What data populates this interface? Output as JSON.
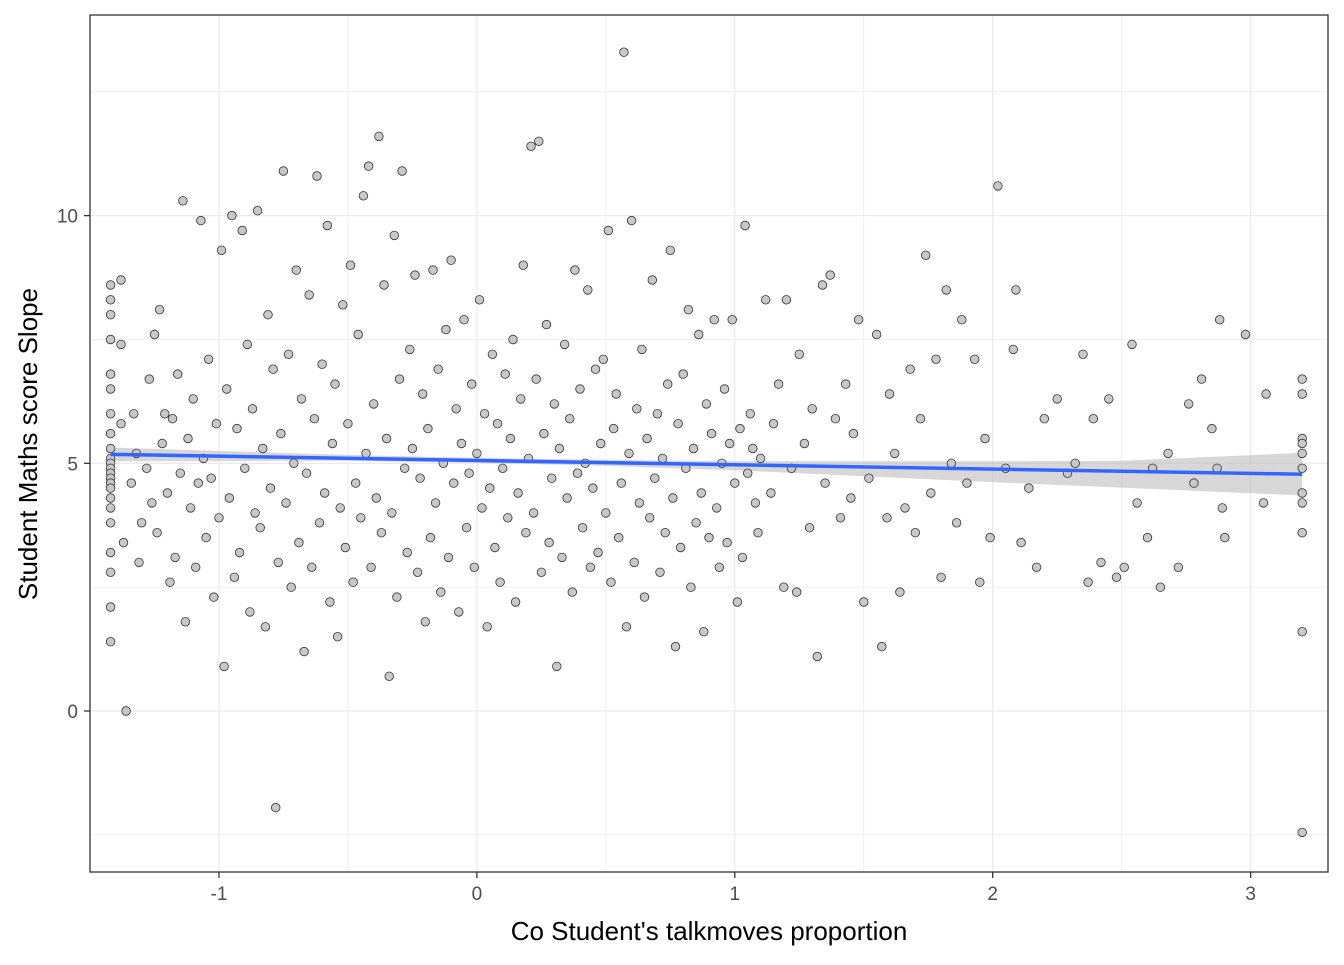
{
  "chart_data": {
    "type": "scatter",
    "title": "",
    "xlabel": "Co Student's talkmoves proportion",
    "ylabel": "Student Maths score Slope",
    "xlim": [
      -1.5,
      3.3
    ],
    "ylim": [
      -3.25,
      14.05
    ],
    "x_ticks": [
      -1,
      0,
      1,
      2,
      3
    ],
    "y_ticks": [
      0,
      5,
      10
    ],
    "x_tick_labels": [
      "-1",
      "0",
      "1",
      "2",
      "3"
    ],
    "y_tick_labels": [
      "0",
      "5",
      "10"
    ],
    "grid": true,
    "legend": "none",
    "colors": {
      "point_fill": "#c8c8c8",
      "point_stroke": "#333333",
      "trend_line": "#3366ff",
      "confidence_band": "#bdbdbd",
      "grid": "#ebebeb",
      "panel_border": "#333333"
    },
    "trend": {
      "method": "linear",
      "x": [
        -1.42,
        3.2
      ],
      "y": [
        5.18,
        4.78
      ],
      "se_band": [
        {
          "x": -1.42,
          "lo": 5.04,
          "hi": 5.32
        },
        {
          "x": -0.5,
          "lo": 5.05,
          "hi": 5.17
        },
        {
          "x": 0.0,
          "lo": 5.01,
          "hi": 5.11
        },
        {
          "x": 0.5,
          "lo": 4.95,
          "hi": 5.07
        },
        {
          "x": 1.0,
          "lo": 4.86,
          "hi": 5.04
        },
        {
          "x": 1.5,
          "lo": 4.74,
          "hi": 5.04
        },
        {
          "x": 2.0,
          "lo": 4.62,
          "hi": 5.04
        },
        {
          "x": 2.5,
          "lo": 4.51,
          "hi": 5.05
        },
        {
          "x": 3.2,
          "lo": 4.35,
          "hi": 5.21
        }
      ]
    },
    "points": [
      [
        -1.42,
        8.6
      ],
      [
        -1.42,
        8.3
      ],
      [
        -1.42,
        8.0
      ],
      [
        -1.42,
        7.5
      ],
      [
        -1.42,
        6.8
      ],
      [
        -1.42,
        6.5
      ],
      [
        -1.42,
        6.0
      ],
      [
        -1.42,
        5.6
      ],
      [
        -1.42,
        5.3
      ],
      [
        -1.42,
        5.1
      ],
      [
        -1.42,
        5.0
      ],
      [
        -1.42,
        4.9
      ],
      [
        -1.42,
        4.8
      ],
      [
        -1.42,
        4.7
      ],
      [
        -1.42,
        4.6
      ],
      [
        -1.42,
        4.5
      ],
      [
        -1.42,
        4.3
      ],
      [
        -1.42,
        4.1
      ],
      [
        -1.42,
        3.8
      ],
      [
        -1.42,
        3.2
      ],
      [
        -1.42,
        2.8
      ],
      [
        -1.42,
        2.1
      ],
      [
        -1.42,
        1.4
      ],
      [
        -1.38,
        8.7
      ],
      [
        -1.38,
        7.4
      ],
      [
        -1.38,
        5.8
      ],
      [
        -1.37,
        3.4
      ],
      [
        -1.36,
        0.0
      ],
      [
        -1.34,
        4.6
      ],
      [
        -1.33,
        6.0
      ],
      [
        -1.32,
        5.2
      ],
      [
        -1.31,
        3.0
      ],
      [
        -1.3,
        3.8
      ],
      [
        -1.28,
        4.9
      ],
      [
        -1.27,
        6.7
      ],
      [
        -1.26,
        4.2
      ],
      [
        -1.25,
        7.6
      ],
      [
        -1.24,
        3.6
      ],
      [
        -1.23,
        8.1
      ],
      [
        -1.22,
        5.4
      ],
      [
        -1.21,
        6.0
      ],
      [
        -1.2,
        4.4
      ],
      [
        -1.19,
        2.6
      ],
      [
        -1.18,
        5.9
      ],
      [
        -1.17,
        3.1
      ],
      [
        -1.16,
        6.8
      ],
      [
        -1.15,
        4.8
      ],
      [
        -1.14,
        10.3
      ],
      [
        -1.13,
        1.8
      ],
      [
        -1.12,
        5.5
      ],
      [
        -1.11,
        4.1
      ],
      [
        -1.1,
        6.3
      ],
      [
        -1.09,
        2.9
      ],
      [
        -1.08,
        4.6
      ],
      [
        -1.07,
        9.9
      ],
      [
        -1.06,
        5.1
      ],
      [
        -1.05,
        3.5
      ],
      [
        -1.04,
        7.1
      ],
      [
        -1.03,
        4.7
      ],
      [
        -1.02,
        2.3
      ],
      [
        -1.01,
        5.8
      ],
      [
        -1.0,
        3.9
      ],
      [
        -0.99,
        9.3
      ],
      [
        -0.98,
        0.9
      ],
      [
        -0.97,
        6.5
      ],
      [
        -0.96,
        4.3
      ],
      [
        -0.95,
        10.0
      ],
      [
        -0.94,
        2.7
      ],
      [
        -0.93,
        5.7
      ],
      [
        -0.92,
        3.2
      ],
      [
        -0.91,
        9.7
      ],
      [
        -0.9,
        4.9
      ],
      [
        -0.89,
        7.4
      ],
      [
        -0.88,
        2.0
      ],
      [
        -0.87,
        6.1
      ],
      [
        -0.86,
        4.0
      ],
      [
        -0.85,
        10.1
      ],
      [
        -0.84,
        3.7
      ],
      [
        -0.83,
        5.3
      ],
      [
        -0.82,
        1.7
      ],
      [
        -0.81,
        8.0
      ],
      [
        -0.8,
        4.5
      ],
      [
        -0.79,
        6.9
      ],
      [
        -0.78,
        -1.95
      ],
      [
        -0.77,
        3.0
      ],
      [
        -0.76,
        5.6
      ],
      [
        -0.75,
        10.9
      ],
      [
        -0.74,
        4.2
      ],
      [
        -0.73,
        7.2
      ],
      [
        -0.72,
        2.5
      ],
      [
        -0.71,
        5.0
      ],
      [
        -0.7,
        8.9
      ],
      [
        -0.69,
        3.4
      ],
      [
        -0.68,
        6.3
      ],
      [
        -0.67,
        1.2
      ],
      [
        -0.66,
        4.8
      ],
      [
        -0.65,
        8.4
      ],
      [
        -0.64,
        2.9
      ],
      [
        -0.63,
        5.9
      ],
      [
        -0.62,
        10.8
      ],
      [
        -0.61,
        3.8
      ],
      [
        -0.6,
        7.0
      ],
      [
        -0.59,
        4.4
      ],
      [
        -0.58,
        9.8
      ],
      [
        -0.57,
        2.2
      ],
      [
        -0.56,
        5.4
      ],
      [
        -0.55,
        6.6
      ],
      [
        -0.54,
        1.5
      ],
      [
        -0.53,
        4.1
      ],
      [
        -0.52,
        8.2
      ],
      [
        -0.51,
        3.3
      ],
      [
        -0.5,
        5.8
      ],
      [
        -0.49,
        9.0
      ],
      [
        -0.48,
        2.6
      ],
      [
        -0.47,
        4.6
      ],
      [
        -0.46,
        7.6
      ],
      [
        -0.45,
        3.9
      ],
      [
        -0.44,
        10.4
      ],
      [
        -0.43,
        5.2
      ],
      [
        -0.42,
        11.0
      ],
      [
        -0.41,
        2.9
      ],
      [
        -0.4,
        6.2
      ],
      [
        -0.39,
        4.3
      ],
      [
        -0.38,
        11.6
      ],
      [
        -0.37,
        3.6
      ],
      [
        -0.36,
        8.6
      ],
      [
        -0.35,
        5.5
      ],
      [
        -0.34,
        0.7
      ],
      [
        -0.33,
        4.0
      ],
      [
        -0.32,
        9.6
      ],
      [
        -0.31,
        2.3
      ],
      [
        -0.3,
        6.7
      ],
      [
        -0.29,
        10.9
      ],
      [
        -0.28,
        4.9
      ],
      [
        -0.27,
        3.2
      ],
      [
        -0.26,
        7.3
      ],
      [
        -0.25,
        5.3
      ],
      [
        -0.24,
        8.8
      ],
      [
        -0.23,
        2.8
      ],
      [
        -0.22,
        4.7
      ],
      [
        -0.21,
        6.4
      ],
      [
        -0.2,
        1.8
      ],
      [
        -0.19,
        5.7
      ],
      [
        -0.18,
        3.5
      ],
      [
        -0.17,
        8.9
      ],
      [
        -0.16,
        4.2
      ],
      [
        -0.15,
        6.9
      ],
      [
        -0.14,
        2.4
      ],
      [
        -0.13,
        5.0
      ],
      [
        -0.12,
        7.7
      ],
      [
        -0.11,
        3.1
      ],
      [
        -0.1,
        9.1
      ],
      [
        -0.09,
        4.6
      ],
      [
        -0.08,
        6.1
      ],
      [
        -0.07,
        2.0
      ],
      [
        -0.06,
        5.4
      ],
      [
        -0.05,
        7.9
      ],
      [
        -0.04,
        3.7
      ],
      [
        -0.03,
        4.8
      ],
      [
        -0.02,
        6.6
      ],
      [
        -0.01,
        2.9
      ],
      [
        0.0,
        5.2
      ],
      [
        0.01,
        8.3
      ],
      [
        0.02,
        4.1
      ],
      [
        0.03,
        6.0
      ],
      [
        0.04,
        1.7
      ],
      [
        0.05,
        4.5
      ],
      [
        0.06,
        7.2
      ],
      [
        0.07,
        3.3
      ],
      [
        0.08,
        5.8
      ],
      [
        0.09,
        2.6
      ],
      [
        0.1,
        4.9
      ],
      [
        0.11,
        6.8
      ],
      [
        0.12,
        3.9
      ],
      [
        0.13,
        5.5
      ],
      [
        0.14,
        7.5
      ],
      [
        0.15,
        2.2
      ],
      [
        0.16,
        4.4
      ],
      [
        0.17,
        6.3
      ],
      [
        0.18,
        9.0
      ],
      [
        0.19,
        3.6
      ],
      [
        0.2,
        5.1
      ],
      [
        0.21,
        11.4
      ],
      [
        0.22,
        4.0
      ],
      [
        0.23,
        6.7
      ],
      [
        0.24,
        11.5
      ],
      [
        0.25,
        2.8
      ],
      [
        0.26,
        5.6
      ],
      [
        0.27,
        7.8
      ],
      [
        0.28,
        3.4
      ],
      [
        0.29,
        4.7
      ],
      [
        0.3,
        6.2
      ],
      [
        0.31,
        0.9
      ],
      [
        0.32,
        5.3
      ],
      [
        0.33,
        3.1
      ],
      [
        0.34,
        7.4
      ],
      [
        0.35,
        4.3
      ],
      [
        0.36,
        5.9
      ],
      [
        0.37,
        2.4
      ],
      [
        0.38,
        8.9
      ],
      [
        0.39,
        4.8
      ],
      [
        0.4,
        6.5
      ],
      [
        0.41,
        3.7
      ],
      [
        0.42,
        5.0
      ],
      [
        0.43,
        8.5
      ],
      [
        0.44,
        2.9
      ],
      [
        0.45,
        4.5
      ],
      [
        0.46,
        6.9
      ],
      [
        0.47,
        3.2
      ],
      [
        0.48,
        5.4
      ],
      [
        0.49,
        7.1
      ],
      [
        0.5,
        4.0
      ],
      [
        0.51,
        9.7
      ],
      [
        0.52,
        2.6
      ],
      [
        0.53,
        5.7
      ],
      [
        0.54,
        6.4
      ],
      [
        0.55,
        3.5
      ],
      [
        0.56,
        4.6
      ],
      [
        0.57,
        13.3
      ],
      [
        0.58,
        1.7
      ],
      [
        0.59,
        5.2
      ],
      [
        0.6,
        9.9
      ],
      [
        0.61,
        3.0
      ],
      [
        0.62,
        6.1
      ],
      [
        0.63,
        4.2
      ],
      [
        0.64,
        7.3
      ],
      [
        0.65,
        2.3
      ],
      [
        0.66,
        5.5
      ],
      [
        0.67,
        3.9
      ],
      [
        0.68,
        8.7
      ],
      [
        0.69,
        4.7
      ],
      [
        0.7,
        6.0
      ],
      [
        0.71,
        2.8
      ],
      [
        0.72,
        5.1
      ],
      [
        0.73,
        3.6
      ],
      [
        0.74,
        6.6
      ],
      [
        0.75,
        9.3
      ],
      [
        0.76,
        4.3
      ],
      [
        0.77,
        1.3
      ],
      [
        0.78,
        5.8
      ],
      [
        0.79,
        3.3
      ],
      [
        0.8,
        6.8
      ],
      [
        0.81,
        4.9
      ],
      [
        0.82,
        8.1
      ],
      [
        0.83,
        2.5
      ],
      [
        0.84,
        5.3
      ],
      [
        0.85,
        3.8
      ],
      [
        0.86,
        7.6
      ],
      [
        0.87,
        4.4
      ],
      [
        0.88,
        1.6
      ],
      [
        0.89,
        6.2
      ],
      [
        0.9,
        3.5
      ],
      [
        0.91,
        5.6
      ],
      [
        0.92,
        7.9
      ],
      [
        0.93,
        4.1
      ],
      [
        0.94,
        2.9
      ],
      [
        0.95,
        5.0
      ],
      [
        0.96,
        6.5
      ],
      [
        0.97,
        3.4
      ],
      [
        0.98,
        5.4
      ],
      [
        0.99,
        7.9
      ],
      [
        1.0,
        4.6
      ],
      [
        1.01,
        2.2
      ],
      [
        1.02,
        5.7
      ],
      [
        1.03,
        3.1
      ],
      [
        1.04,
        9.8
      ],
      [
        1.05,
        4.8
      ],
      [
        1.06,
        6.0
      ],
      [
        1.07,
        5.3
      ],
      [
        1.08,
        4.2
      ],
      [
        1.09,
        3.6
      ],
      [
        1.1,
        5.1
      ],
      [
        1.12,
        8.3
      ],
      [
        1.14,
        4.4
      ],
      [
        1.15,
        5.8
      ],
      [
        1.17,
        6.6
      ],
      [
        1.19,
        2.5
      ],
      [
        1.2,
        8.3
      ],
      [
        1.22,
        4.9
      ],
      [
        1.24,
        2.4
      ],
      [
        1.25,
        7.2
      ],
      [
        1.27,
        5.4
      ],
      [
        1.29,
        3.7
      ],
      [
        1.3,
        6.1
      ],
      [
        1.32,
        1.1
      ],
      [
        1.34,
        8.6
      ],
      [
        1.35,
        4.6
      ],
      [
        1.37,
        8.8
      ],
      [
        1.39,
        5.9
      ],
      [
        1.41,
        3.9
      ],
      [
        1.43,
        6.6
      ],
      [
        1.45,
        4.3
      ],
      [
        1.46,
        5.6
      ],
      [
        1.48,
        7.9
      ],
      [
        1.5,
        2.2
      ],
      [
        1.52,
        4.7
      ],
      [
        1.55,
        7.6
      ],
      [
        1.57,
        1.3
      ],
      [
        1.59,
        3.9
      ],
      [
        1.6,
        6.4
      ],
      [
        1.62,
        5.2
      ],
      [
        1.64,
        2.4
      ],
      [
        1.66,
        4.1
      ],
      [
        1.68,
        6.9
      ],
      [
        1.7,
        3.6
      ],
      [
        1.72,
        5.9
      ],
      [
        1.74,
        9.2
      ],
      [
        1.76,
        4.4
      ],
      [
        1.78,
        7.1
      ],
      [
        1.8,
        2.7
      ],
      [
        1.82,
        8.5
      ],
      [
        1.84,
        5.0
      ],
      [
        1.86,
        3.8
      ],
      [
        1.88,
        7.9
      ],
      [
        1.9,
        4.6
      ],
      [
        1.93,
        7.1
      ],
      [
        1.95,
        2.6
      ],
      [
        1.97,
        5.5
      ],
      [
        1.99,
        3.5
      ],
      [
        2.02,
        10.6
      ],
      [
        2.05,
        4.9
      ],
      [
        2.08,
        7.3
      ],
      [
        2.09,
        8.5
      ],
      [
        2.11,
        3.4
      ],
      [
        2.14,
        4.5
      ],
      [
        2.17,
        2.9
      ],
      [
        2.2,
        5.9
      ],
      [
        2.25,
        6.3
      ],
      [
        2.29,
        4.8
      ],
      [
        2.32,
        5.0
      ],
      [
        2.35,
        7.2
      ],
      [
        2.37,
        2.6
      ],
      [
        2.39,
        5.9
      ],
      [
        2.42,
        3.0
      ],
      [
        2.45,
        6.3
      ],
      [
        2.48,
        2.7
      ],
      [
        2.51,
        2.9
      ],
      [
        2.54,
        7.4
      ],
      [
        2.56,
        4.2
      ],
      [
        2.6,
        3.5
      ],
      [
        2.62,
        4.9
      ],
      [
        2.65,
        2.5
      ],
      [
        2.68,
        5.2
      ],
      [
        2.72,
        2.9
      ],
      [
        2.76,
        6.2
      ],
      [
        2.78,
        4.6
      ],
      [
        2.81,
        6.7
      ],
      [
        2.85,
        5.7
      ],
      [
        2.87,
        4.9
      ],
      [
        2.88,
        7.9
      ],
      [
        2.89,
        4.1
      ],
      [
        2.9,
        3.5
      ],
      [
        2.98,
        7.6
      ],
      [
        3.05,
        4.2
      ],
      [
        3.06,
        6.4
      ],
      [
        3.2,
        6.7
      ],
      [
        3.2,
        6.4
      ],
      [
        3.2,
        5.5
      ],
      [
        3.2,
        5.4
      ],
      [
        3.2,
        5.2
      ],
      [
        3.2,
        4.9
      ],
      [
        3.2,
        4.4
      ],
      [
        3.2,
        4.2
      ],
      [
        3.2,
        3.6
      ],
      [
        3.2,
        1.6
      ],
      [
        3.2,
        -2.45
      ]
    ]
  }
}
